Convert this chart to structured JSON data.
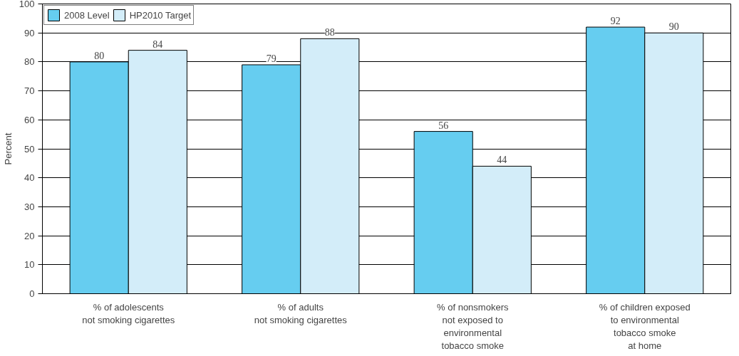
{
  "chart_data": {
    "type": "bar",
    "ylabel": "Percent",
    "categories": [
      "% of adolescents\nnot smoking cigarettes",
      "% of adults\nnot smoking cigarettes",
      "% of nonsmokers\nnot exposed to\nenvironmental\ntobacco smoke",
      "% of children exposed\nto environmental\ntobacco smoke\nat home"
    ],
    "series": [
      {
        "name": "2008 Level",
        "color": "#66cdf0",
        "values": [
          80,
          79,
          56,
          92
        ]
      },
      {
        "name": "HP2010 Target",
        "color": "#d3edf9",
        "values": [
          84,
          88,
          44,
          90
        ]
      }
    ],
    "ylim": [
      0,
      100
    ],
    "yticks": [
      0,
      10,
      20,
      30,
      40,
      50,
      60,
      70,
      80,
      90,
      100
    ],
    "grid": "y",
    "legend": "top left",
    "data_labels": true
  }
}
